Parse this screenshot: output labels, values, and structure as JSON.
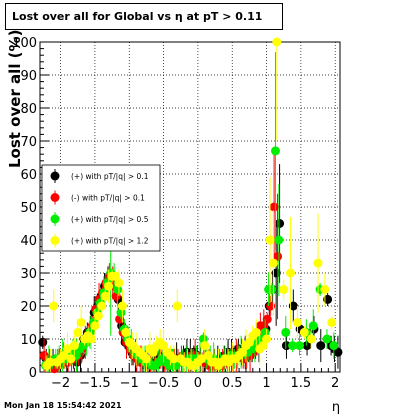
{
  "title": "Lost over all for Global vs    η at pT > 0.11",
  "footer": "Mon Jan 18 15:54:42 2021",
  "chart_data": {
    "type": "scatter",
    "title": "Lost over all for Global vs    η at pT > 0.11",
    "xlabel": "η",
    "ylabel": "Lost over all (%)",
    "xlim": [
      -2.3,
      2.07
    ],
    "ylim": [
      0,
      100
    ],
    "xticks": [
      -2,
      -1.5,
      -1,
      -0.5,
      0,
      0.5,
      1,
      1.5,
      2
    ],
    "xtick_labels": [
      "−2",
      "−1.5",
      "−1",
      "−0.5",
      "0",
      "0.5",
      "1",
      "1.5",
      "2"
    ],
    "yticks": [
      0,
      10,
      20,
      30,
      40,
      50,
      60,
      70,
      80,
      90,
      100
    ],
    "ytick_labels": [
      "0",
      "10",
      "20",
      "30",
      "40",
      "50",
      "60",
      "70",
      "80",
      "90",
      "100"
    ],
    "grid": true,
    "legend_position": "mid-left",
    "series": [
      {
        "name": "(+) with pT/|q| > 0.1",
        "color": "#000000",
        "x": [
          -2.26,
          -2.21,
          -2.16,
          -2.11,
          -2.06,
          -2.01,
          -1.96,
          -1.91,
          -1.86,
          -1.81,
          -1.76,
          -1.71,
          -1.66,
          -1.61,
          -1.56,
          -1.51,
          -1.46,
          -1.41,
          -1.36,
          -1.31,
          -1.26,
          -1.21,
          -1.16,
          -1.11,
          -1.06,
          -1.01,
          -0.96,
          -0.91,
          -0.86,
          -0.81,
          -0.76,
          -0.71,
          -0.66,
          -0.61,
          -0.56,
          -0.51,
          -0.46,
          -0.41,
          -0.36,
          -0.31,
          -0.26,
          -0.21,
          -0.16,
          -0.11,
          -0.06,
          -0.01,
          0.04,
          0.09,
          0.14,
          0.19,
          0.24,
          0.29,
          0.34,
          0.39,
          0.44,
          0.49,
          0.54,
          0.59,
          0.64,
          0.69,
          0.74,
          0.79,
          0.84,
          0.89,
          0.94,
          0.99,
          1.04,
          1.09,
          1.14,
          1.19,
          1.29,
          1.39,
          1.49,
          1.59,
          1.69,
          1.79,
          1.89,
          1.94,
          1.99,
          2.04
        ],
        "y": [
          9,
          4,
          3,
          2,
          3,
          4,
          5,
          3,
          6,
          4,
          3,
          5,
          10,
          12,
          13,
          18,
          20,
          23,
          26,
          27,
          28,
          26,
          22,
          14,
          9,
          8,
          6,
          5,
          4,
          4,
          3,
          3,
          3,
          4,
          5,
          4,
          3,
          3,
          3,
          4,
          4,
          5,
          6,
          5,
          6,
          5,
          4,
          3,
          3,
          3,
          3,
          3,
          4,
          5,
          6,
          5,
          6,
          7,
          6,
          6,
          5,
          6,
          8,
          8,
          8,
          13,
          20,
          25,
          30,
          45,
          8,
          20,
          13,
          8,
          13,
          8,
          22,
          8,
          7,
          6
        ]
      },
      {
        "name": "(-) with pT/|q| > 0.1",
        "color": "#ff0000",
        "x": [
          -2.24,
          -2.19,
          -2.14,
          -2.09,
          -2.04,
          -1.99,
          -1.94,
          -1.89,
          -1.84,
          -1.79,
          -1.74,
          -1.69,
          -1.64,
          -1.59,
          -1.54,
          -1.49,
          -1.44,
          -1.39,
          -1.34,
          -1.29,
          -1.24,
          -1.19,
          -1.14,
          -1.09,
          -1.04,
          -0.99,
          -0.94,
          -0.89,
          -0.84,
          -0.79,
          -0.74,
          -0.69,
          -0.64,
          -0.59,
          -0.54,
          -0.49,
          -0.44,
          -0.39,
          -0.34,
          -0.29,
          -0.24,
          -0.19,
          -0.14,
          -0.09,
          -0.04,
          0.01,
          0.06,
          0.11,
          0.16,
          0.21,
          0.26,
          0.31,
          0.36,
          0.41,
          0.46,
          0.51,
          0.56,
          0.61,
          0.66,
          0.71,
          0.76,
          0.81,
          0.86,
          0.91,
          0.96,
          1.01,
          1.06,
          1.11,
          1.16
        ],
        "y": [
          5,
          3,
          2,
          1,
          2,
          3,
          4,
          3,
          4,
          4,
          5,
          7,
          9,
          11,
          14,
          19,
          22,
          24,
          27,
          29,
          27,
          23,
          16,
          12,
          9,
          7,
          5,
          4,
          3,
          3,
          3,
          2,
          2,
          3,
          4,
          3,
          2,
          5,
          4,
          3,
          3,
          4,
          3,
          3,
          5,
          4,
          3,
          3,
          2,
          2,
          2,
          3,
          2,
          3,
          3,
          4,
          5,
          5,
          4,
          5,
          5,
          6,
          8,
          14,
          14,
          16,
          20,
          50,
          35
        ]
      },
      {
        "name": "(+) with pT/|q| > 0.5",
        "color": "#00ee00",
        "x": [
          -2.22,
          -2.17,
          -2.12,
          -2.07,
          -2.02,
          -1.97,
          -1.92,
          -1.87,
          -1.82,
          -1.77,
          -1.72,
          -1.67,
          -1.62,
          -1.57,
          -1.52,
          -1.47,
          -1.42,
          -1.37,
          -1.32,
          -1.27,
          -1.22,
          -1.17,
          -1.12,
          -1.07,
          -1.02,
          -0.97,
          -0.92,
          -0.87,
          -0.82,
          -0.77,
          -0.72,
          -0.67,
          -0.62,
          -0.57,
          -0.52,
          -0.47,
          -0.42,
          -0.37,
          -0.32,
          -0.27,
          -0.22,
          -0.17,
          -0.12,
          -0.07,
          -0.02,
          0.03,
          0.08,
          0.13,
          0.18,
          0.23,
          0.28,
          0.33,
          0.38,
          0.43,
          0.48,
          0.53,
          0.58,
          0.63,
          0.68,
          0.73,
          0.78,
          0.83,
          0.88,
          0.93,
          0.98,
          1.03,
          1.08,
          1.13,
          1.18,
          1.28,
          1.38,
          1.48,
          1.58,
          1.68,
          1.78,
          1.88,
          1.98
        ],
        "y": [
          2,
          3,
          3,
          4,
          4,
          5,
          4,
          5,
          6,
          5,
          7,
          8,
          9,
          12,
          15,
          18,
          21,
          24,
          27,
          30,
          29,
          25,
          18,
          13,
          10,
          8,
          6,
          5,
          4,
          3,
          3,
          2,
          2,
          3,
          4,
          3,
          2,
          2,
          2,
          3,
          3,
          3,
          4,
          4,
          4,
          4,
          10,
          4,
          4,
          4,
          3,
          3,
          4,
          4,
          5,
          4,
          5,
          6,
          6,
          6,
          7,
          8,
          9,
          10,
          12,
          25,
          25,
          67,
          40,
          12,
          8,
          8,
          12,
          14,
          25,
          10,
          8
        ]
      },
      {
        "name": "(+) with pT/|q| > 1.2",
        "color": "#ffff00",
        "x": [
          -2.2,
          -2.15,
          -2.1,
          -2.05,
          -2.0,
          -1.95,
          -1.9,
          -1.85,
          -1.8,
          -1.75,
          -1.7,
          -1.65,
          -1.6,
          -1.55,
          -1.5,
          -1.45,
          -1.4,
          -1.35,
          -1.3,
          -1.25,
          -1.2,
          -1.15,
          -1.1,
          -1.05,
          -1.0,
          -0.95,
          -0.9,
          -0.85,
          -0.8,
          -0.75,
          -0.7,
          -0.65,
          -0.6,
          -0.55,
          -0.5,
          -0.45,
          -0.4,
          -0.35,
          -0.3,
          -0.25,
          -0.2,
          -0.15,
          -0.1,
          -0.05,
          0.0,
          0.05,
          0.1,
          0.15,
          0.2,
          0.25,
          0.3,
          0.35,
          0.4,
          0.45,
          0.5,
          0.55,
          0.6,
          0.65,
          0.7,
          0.75,
          0.8,
          0.85,
          0.9,
          0.95,
          1.0,
          1.05,
          1.1,
          1.15,
          1.25,
          1.35,
          1.45,
          1.55,
          1.65,
          1.75,
          1.85,
          1.95
        ],
        "y": [
          2,
          3,
          20,
          3,
          4,
          5,
          7,
          4,
          8,
          12,
          15,
          10,
          11,
          10,
          14,
          17,
          20,
          23,
          26,
          29,
          29,
          27,
          20,
          12,
          9,
          8,
          7,
          6,
          5,
          4,
          7,
          6,
          8,
          9,
          8,
          6,
          5,
          4,
          20,
          4,
          3,
          3,
          2,
          2,
          3,
          4,
          8,
          5,
          3,
          3,
          2,
          3,
          4,
          3,
          4,
          4,
          5,
          6,
          8,
          9,
          11,
          12,
          7,
          8,
          10,
          40,
          33,
          100,
          25,
          30,
          15,
          12,
          10,
          33,
          25,
          15
        ]
      }
    ]
  }
}
